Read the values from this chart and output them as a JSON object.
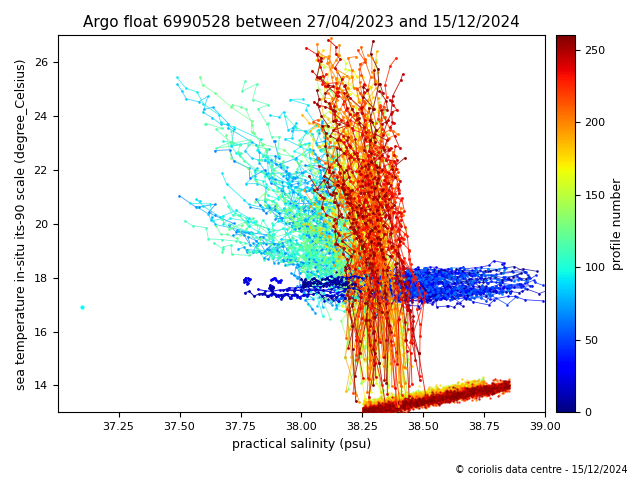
{
  "title": "Argo float 6990528 between 27/04/2023 and 15/12/2024",
  "xlabel": "practical salinity (psu)",
  "ylabel": "sea temperature in-situ its-90 scale (degree_Celsius)",
  "colorbar_label": "profile number",
  "copyright": "© coriolis data centre - 15/12/2024",
  "xlim": [
    37.0,
    39.0
  ],
  "ylim": [
    13.0,
    27.0
  ],
  "xticks": [
    37.25,
    37.5,
    37.75,
    38.0,
    38.25,
    38.5,
    38.75,
    39.0
  ],
  "yticks": [
    14,
    16,
    18,
    20,
    22,
    24,
    26
  ],
  "cmap": "jet",
  "vmin": 0,
  "vmax": 260,
  "colorbar_ticks": [
    0,
    50,
    100,
    150,
    200,
    250
  ],
  "n_profiles": 260,
  "title_fontsize": 11,
  "label_fontsize": 9,
  "tick_fontsize": 8,
  "background_color": "#ffffff",
  "seed": 7
}
